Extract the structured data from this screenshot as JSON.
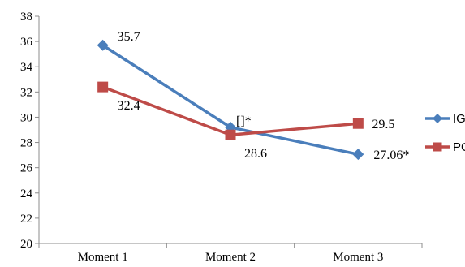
{
  "chart_data": {
    "type": "line",
    "categories": [
      "Moment 1",
      "Moment 2",
      "Moment 3"
    ],
    "ylim": [
      20,
      38
    ],
    "y_ticks": [
      "20",
      "22",
      "24",
      "26",
      "28",
      "30",
      "32",
      "34",
      "36",
      "38"
    ],
    "grid": false,
    "legend_position": "right",
    "series": [
      {
        "name": "IG",
        "marker": "diamond",
        "color": "#4a7ebb",
        "values": [
          35.7,
          29.2,
          27.06
        ],
        "labels": [
          "35.7",
          "[]*",
          "27.06*"
        ]
      },
      {
        "name": "PG",
        "marker": "square",
        "color": "#be4b48",
        "values": [
          32.4,
          28.6,
          29.5
        ],
        "labels": [
          "32.4",
          "28.6",
          "29.5"
        ]
      }
    ]
  }
}
